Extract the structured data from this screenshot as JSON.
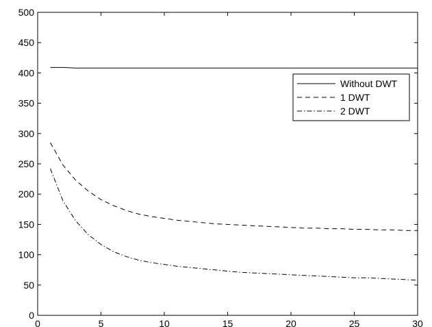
{
  "chart_data": {
    "type": "line",
    "xlim": [
      0,
      30
    ],
    "ylim": [
      0,
      500
    ],
    "xticks": [
      0,
      5,
      10,
      15,
      20,
      25,
      30
    ],
    "yticks": [
      0,
      50,
      100,
      150,
      200,
      250,
      300,
      350,
      400,
      450,
      500
    ],
    "grid": false,
    "legend": "upper-right",
    "series": [
      {
        "name": "Without DWT",
        "style": "solid",
        "color": "#000000",
        "x": [
          1,
          2,
          3,
          4,
          5,
          6,
          7,
          8,
          9,
          10,
          11,
          12,
          13,
          14,
          15,
          16,
          17,
          18,
          19,
          20,
          21,
          22,
          23,
          24,
          25,
          26,
          27,
          28,
          29,
          30
        ],
        "y": [
          409,
          409,
          408,
          408,
          408,
          408,
          408,
          408,
          408,
          408,
          408,
          408,
          408,
          408,
          408,
          408,
          408,
          408,
          408,
          408,
          408,
          408,
          408,
          408,
          408,
          408,
          408,
          408,
          408,
          408
        ]
      },
      {
        "name": "1 DWT",
        "style": "dashed",
        "color": "#000000",
        "x": [
          1,
          2,
          3,
          4,
          5,
          6,
          7,
          8,
          9,
          10,
          11,
          12,
          13,
          14,
          15,
          16,
          17,
          18,
          19,
          20,
          21,
          22,
          23,
          24,
          25,
          26,
          27,
          28,
          29,
          30
        ],
        "y": [
          285,
          248,
          223,
          205,
          191,
          181,
          173,
          167,
          163,
          160,
          157,
          155,
          153,
          151,
          150,
          149,
          148,
          147,
          146,
          145,
          144,
          144,
          143,
          143,
          142,
          142,
          141,
          141,
          140,
          140
        ]
      },
      {
        "name": "2 DWT",
        "style": "dashdot",
        "color": "#000000",
        "x": [
          1,
          2,
          3,
          4,
          5,
          6,
          7,
          8,
          9,
          10,
          11,
          12,
          13,
          14,
          15,
          16,
          17,
          18,
          19,
          20,
          21,
          22,
          23,
          24,
          25,
          26,
          27,
          28,
          29,
          30
        ],
        "y": [
          242,
          189,
          156,
          133,
          117,
          105,
          97,
          91,
          87,
          84,
          81,
          79,
          77,
          75,
          73,
          71,
          70,
          69,
          68,
          67,
          66,
          65,
          64,
          63,
          62,
          62,
          61,
          60,
          59,
          58
        ]
      }
    ]
  }
}
